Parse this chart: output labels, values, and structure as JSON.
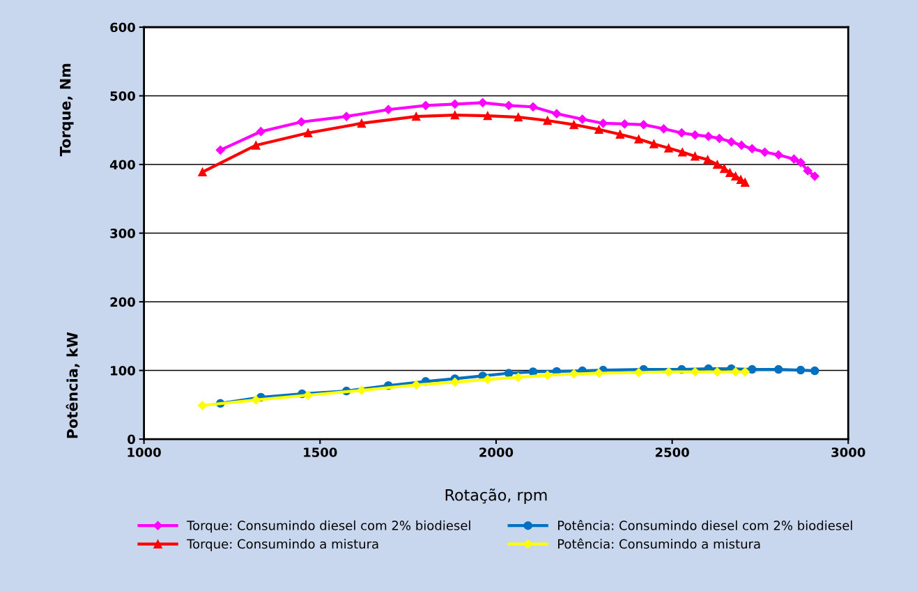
{
  "chart_data": {
    "type": "line",
    "xlabel": "Rotação, rpm",
    "ylabel": "Torque, Nm",
    "annotations": [
      "Potência, kW"
    ],
    "xlim": [
      1000,
      3000
    ],
    "xticks": [
      1000,
      1500,
      2000,
      2500,
      3000
    ],
    "ylim": [
      0,
      600
    ],
    "yticks": [
      0,
      100,
      200,
      300,
      400,
      500,
      600
    ],
    "grid": "y",
    "legend": "bottom",
    "series": [
      {
        "name": "Torque: Consumindo diesel com 2% biodiesel",
        "color": "#ff00ff",
        "marker": "diamond",
        "x": [
          1217,
          1332,
          1447,
          1575,
          1694,
          1800,
          1883,
          1962,
          2036,
          2105,
          2172,
          2245,
          2304,
          2365,
          2419,
          2476,
          2527,
          2565,
          2603,
          2634,
          2668,
          2697,
          2727,
          2763,
          2802,
          2846,
          2865,
          2885,
          2905
        ],
        "values": [
          421,
          448,
          462,
          470,
          480,
          486,
          488,
          490,
          486,
          484,
          474,
          466,
          460,
          459,
          458,
          452,
          446,
          443,
          441,
          438,
          433,
          428,
          423,
          418,
          414,
          408,
          403,
          391,
          383
        ]
      },
      {
        "name": "Torque: Consumindo a mistura",
        "color": "#ff0000",
        "marker": "triangle",
        "x": [
          1166,
          1318,
          1466,
          1618,
          1773,
          1883,
          1976,
          2063,
          2146,
          2221,
          2292,
          2352,
          2405,
          2448,
          2490,
          2529,
          2565,
          2601,
          2628,
          2648,
          2664,
          2680,
          2695,
          2707
        ],
        "values": [
          389,
          428,
          446,
          460,
          470,
          472,
          471,
          469,
          464,
          458,
          451,
          444,
          437,
          430,
          424,
          418,
          412,
          407,
          400,
          394,
          388,
          383,
          378,
          374
        ]
      },
      {
        "name": "Potência: Consumindo diesel com 2% biodiesel",
        "color": "#0070c0",
        "marker": "circle",
        "x": [
          1217,
          1332,
          1449,
          1575,
          1694,
          1800,
          1883,
          1962,
          2036,
          2105,
          2172,
          2245,
          2304,
          2419,
          2527,
          2603,
          2668,
          2727,
          2802,
          2865,
          2905
        ],
        "values": [
          52,
          61,
          66,
          70,
          78,
          84,
          88,
          92,
          96,
          98,
          98.5,
          99.5,
          100.5,
          101.5,
          101.5,
          102.5,
          102.5,
          101.5,
          101.5,
          100.5,
          99.5
        ]
      },
      {
        "name": "Potência: Consumindo a mistura",
        "color": "#ffff00",
        "marker": "diamond",
        "x": [
          1166,
          1318,
          1466,
          1618,
          1773,
          1883,
          1976,
          2063,
          2146,
          2221,
          2292,
          2405,
          2490,
          2565,
          2628,
          2680,
          2707
        ],
        "values": [
          49,
          57,
          64,
          71,
          79,
          83,
          87,
          90,
          93,
          95,
          96,
          97,
          98,
          98,
          98,
          98,
          98
        ]
      }
    ]
  }
}
